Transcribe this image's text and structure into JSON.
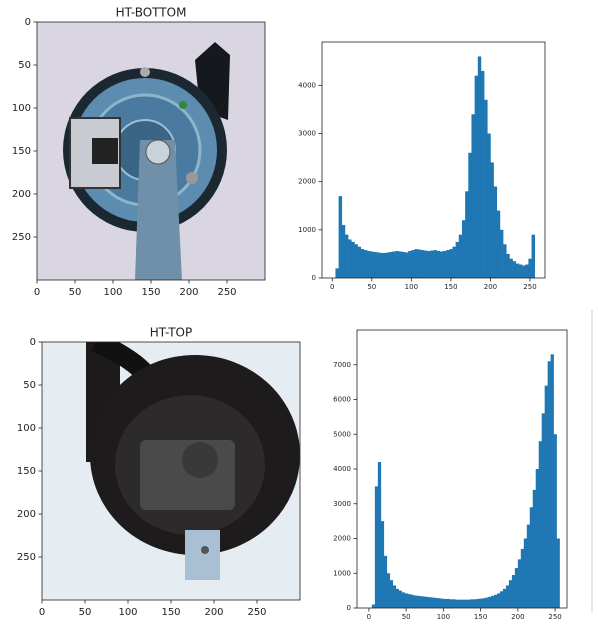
{
  "chart_data": [
    {
      "type": "image",
      "title": "HT-BOTTOM",
      "xlim": [
        0,
        300
      ],
      "ylim": [
        300,
        0
      ],
      "xticks": [
        0,
        50,
        100,
        150,
        200,
        250
      ],
      "yticks": [
        0,
        50,
        100,
        150,
        200,
        250
      ]
    },
    {
      "type": "histogram",
      "color": "#1f77b4",
      "xlim": [
        -13,
        269
      ],
      "ylim": [
        0,
        4900
      ],
      "xticks": [
        0,
        50,
        100,
        150,
        200,
        250
      ],
      "yticks": [
        0,
        1000,
        2000,
        3000,
        4000
      ],
      "bins": [
        0,
        4,
        8,
        12,
        16,
        20,
        24,
        28,
        32,
        36,
        40,
        44,
        48,
        52,
        56,
        60,
        64,
        68,
        72,
        76,
        80,
        84,
        88,
        92,
        96,
        100,
        104,
        108,
        112,
        116,
        120,
        124,
        128,
        132,
        136,
        140,
        144,
        148,
        152,
        156,
        160,
        164,
        168,
        172,
        176,
        180,
        184,
        188,
        192,
        196,
        200,
        204,
        208,
        212,
        216,
        220,
        224,
        228,
        232,
        236,
        240,
        244,
        248,
        252,
        256
      ],
      "values": [
        0,
        200,
        1700,
        1100,
        900,
        800,
        750,
        700,
        650,
        600,
        580,
        560,
        550,
        540,
        530,
        520,
        520,
        530,
        540,
        550,
        560,
        550,
        540,
        530,
        560,
        580,
        600,
        590,
        580,
        570,
        560,
        570,
        580,
        560,
        550,
        560,
        580,
        600,
        650,
        750,
        900,
        1200,
        1800,
        2600,
        3400,
        4200,
        4600,
        4300,
        3700,
        3000,
        2400,
        1900,
        1400,
        1000,
        700,
        500,
        400,
        350,
        300,
        280,
        260,
        280,
        400,
        900
      ]
    },
    {
      "type": "image",
      "title": "HT-TOP",
      "xlim": [
        0,
        300
      ],
      "ylim": [
        300,
        0
      ],
      "xticks": [
        0,
        50,
        100,
        150,
        200,
        250
      ],
      "yticks": [
        0,
        50,
        100,
        150,
        200,
        250
      ]
    },
    {
      "type": "histogram",
      "color": "#1f77b4",
      "xlim": [
        -16,
        266
      ],
      "ylim": [
        0,
        8000
      ],
      "xticks": [
        0,
        50,
        100,
        150,
        200,
        250
      ],
      "yticks": [
        0,
        1000,
        2000,
        3000,
        4000,
        5000,
        6000,
        7000
      ],
      "bins": [
        0,
        4,
        8,
        12,
        16,
        20,
        24,
        28,
        32,
        36,
        40,
        44,
        48,
        52,
        56,
        60,
        64,
        68,
        72,
        76,
        80,
        84,
        88,
        92,
        96,
        100,
        104,
        108,
        112,
        116,
        120,
        124,
        128,
        132,
        136,
        140,
        144,
        148,
        152,
        156,
        160,
        164,
        168,
        172,
        176,
        180,
        184,
        188,
        192,
        196,
        200,
        204,
        208,
        212,
        216,
        220,
        224,
        228,
        232,
        236,
        240,
        244,
        248,
        252,
        256
      ],
      "values": [
        0,
        100,
        3500,
        4200,
        2500,
        1500,
        1000,
        800,
        650,
        550,
        500,
        450,
        420,
        400,
        380,
        360,
        350,
        340,
        330,
        320,
        310,
        300,
        290,
        280,
        270,
        260,
        260,
        250,
        250,
        240,
        240,
        240,
        240,
        240,
        250,
        250,
        260,
        270,
        280,
        300,
        320,
        350,
        380,
        420,
        480,
        550,
        650,
        800,
        950,
        1150,
        1400,
        1700,
        2000,
        2400,
        2900,
        3400,
        4000,
        4800,
        5600,
        6400,
        7100,
        7300,
        5000,
        2000
      ]
    }
  ]
}
